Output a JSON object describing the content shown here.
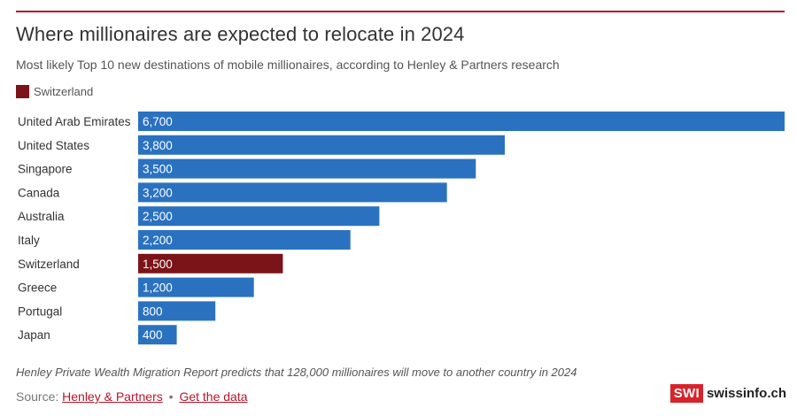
{
  "header": {
    "title": "Where millionaires are expected to relocate in 2024",
    "subtitle": "Most likely Top 10 new destinations of mobile millionaires, according to Henley & Partners research"
  },
  "legend": {
    "label": "Switzerland",
    "color": "#7b1419"
  },
  "colors": {
    "accent": "#b3182b",
    "bar_default": "#2a72c0",
    "bar_highlight": "#7b1419"
  },
  "chart_data": {
    "type": "bar",
    "orientation": "horizontal",
    "categories": [
      "United Arab Emirates",
      "United States",
      "Singapore",
      "Canada",
      "Australia",
      "Italy",
      "Switzerland",
      "Greece",
      "Portugal",
      "Japan"
    ],
    "values": [
      6700,
      3800,
      3500,
      3200,
      2500,
      2200,
      1500,
      1200,
      800,
      400
    ],
    "data_labels": [
      "6,700",
      "3,800",
      "3,500",
      "3,200",
      "2,500",
      "2,200",
      "1,500",
      "1,200",
      "800",
      "400"
    ],
    "highlight": "Switzerland",
    "title": "Where millionaires are expected to relocate in 2024",
    "subtitle": "Most likely Top 10 new destinations of mobile millionaires, according to Henley & Partners research",
    "xlim": [
      0,
      6700
    ],
    "grid": false,
    "legend_placement": "top-left"
  },
  "footer": {
    "note": "Henley Private Wealth Migration Report predicts that 128,000 millionaires will move to another country in 2024",
    "source_prefix": "Source:",
    "source_link": "Henley & Partners",
    "separator": "•",
    "data_link": "Get the data",
    "brand_box": "SWI",
    "brand_text": "swissinfo.ch"
  }
}
